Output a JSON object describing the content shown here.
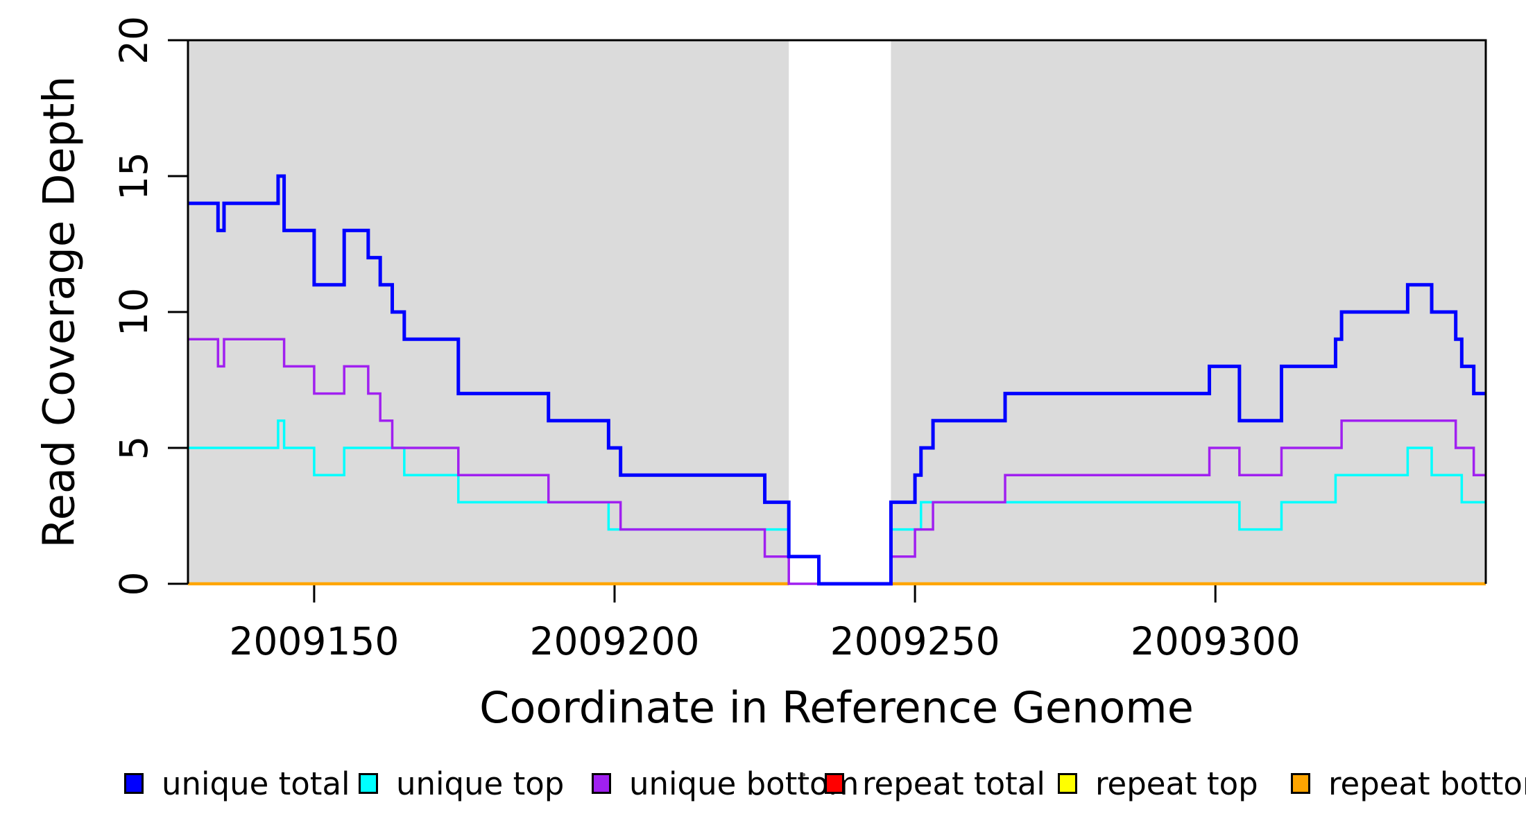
{
  "labels": {
    "x_axis": "Coordinate in Reference Genome",
    "y_axis": "Read Coverage Depth"
  },
  "chart_data": {
    "type": "line",
    "subtype": "step",
    "xlabel": "Coordinate in Reference Genome",
    "ylabel": "Read Coverage Depth",
    "xlim": [
      2009129,
      2009345
    ],
    "ylim": [
      0,
      20
    ],
    "x_ticks": [
      "2009150",
      "2009200",
      "2009250",
      "2009300"
    ],
    "x_tick_values": [
      2009150,
      2009200,
      2009250,
      2009300
    ],
    "y_ticks": [
      "0",
      "5",
      "10",
      "15",
      "20"
    ],
    "y_tick_values": [
      0,
      5,
      10,
      15,
      20
    ],
    "grid": false,
    "legend_position": "bottom",
    "background_color": "#ffffff",
    "shaded_region_color": "#dbdbdb",
    "shaded_regions": [
      {
        "x0": 2009129,
        "x1": 2009229
      },
      {
        "x0": 2009246,
        "x1": 2009345
      }
    ],
    "gap_region": {
      "x0": 2009229,
      "x1": 2009246
    },
    "series": [
      {
        "name": "repeat total",
        "color": "#FF0000",
        "line_width": 3.5,
        "z": 1,
        "segments": [
          {
            "steps": [
              [
                2009129,
                0
              ]
            ],
            "end": 2009229
          },
          {
            "steps": [
              [
                2009246,
                0
              ]
            ],
            "end": 2009345
          }
        ]
      },
      {
        "name": "repeat top",
        "color": "#FFFF00",
        "line_width": 3.5,
        "z": 2,
        "segments": [
          {
            "steps": [
              [
                2009129,
                0
              ]
            ],
            "end": 2009229
          },
          {
            "steps": [
              [
                2009246,
                0
              ]
            ],
            "end": 2009345
          }
        ]
      },
      {
        "name": "repeat bottom",
        "color": "#FFA500",
        "line_width": 4.5,
        "z": 3,
        "segments": [
          {
            "steps": [
              [
                2009129,
                0
              ]
            ],
            "end": 2009229
          },
          {
            "steps": [
              [
                2009246,
                0
              ]
            ],
            "end": 2009345
          }
        ]
      },
      {
        "name": "unique top",
        "color": "#00FFFF",
        "line_width": 3.5,
        "z": 4,
        "segments": [
          {
            "steps": [
              [
                2009129,
                5
              ],
              [
                2009144,
                6
              ],
              [
                2009145,
                5
              ],
              [
                2009150,
                4
              ],
              [
                2009155,
                5
              ],
              [
                2009165,
                4
              ],
              [
                2009174,
                3
              ],
              [
                2009199,
                2
              ],
              [
                2009229,
                1
              ],
              [
                2009234,
                0
              ],
              [
                2009246,
                2
              ],
              [
                2009251,
                3
              ],
              [
                2009304,
                2
              ],
              [
                2009311,
                3
              ],
              [
                2009320,
                4
              ],
              [
                2009332,
                5
              ],
              [
                2009336,
                4
              ],
              [
                2009341,
                3
              ]
            ],
            "end": 2009345
          }
        ]
      },
      {
        "name": "unique bottom",
        "color": "#A020F0",
        "line_width": 3.5,
        "z": 5,
        "segments": [
          {
            "steps": [
              [
                2009129,
                9
              ],
              [
                2009134,
                8
              ],
              [
                2009135,
                9
              ],
              [
                2009145,
                8
              ],
              [
                2009150,
                7
              ],
              [
                2009155,
                8
              ],
              [
                2009159,
                7
              ],
              [
                2009161,
                6
              ],
              [
                2009163,
                5
              ],
              [
                2009174,
                4
              ],
              [
                2009189,
                3
              ],
              [
                2009201,
                2
              ],
              [
                2009225,
                1
              ],
              [
                2009229,
                0
              ],
              [
                2009246,
                1
              ],
              [
                2009250,
                2
              ],
              [
                2009253,
                3
              ],
              [
                2009265,
                4
              ],
              [
                2009299,
                5
              ],
              [
                2009304,
                4
              ],
              [
                2009311,
                5
              ],
              [
                2009321,
                6
              ],
              [
                2009340,
                5
              ],
              [
                2009343,
                4
              ]
            ],
            "end": 2009345
          }
        ]
      },
      {
        "name": "unique total",
        "color": "#0000FF",
        "line_width": 5,
        "z": 6,
        "segments": [
          {
            "steps": [
              [
                2009129,
                14
              ],
              [
                2009134,
                13
              ],
              [
                2009135,
                14
              ],
              [
                2009144,
                15
              ],
              [
                2009145,
                13
              ],
              [
                2009150,
                11
              ],
              [
                2009155,
                13
              ],
              [
                2009159,
                12
              ],
              [
                2009161,
                11
              ],
              [
                2009163,
                10
              ],
              [
                2009165,
                9
              ],
              [
                2009174,
                7
              ],
              [
                2009189,
                6
              ],
              [
                2009199,
                5
              ],
              [
                2009201,
                4
              ],
              [
                2009225,
                3
              ],
              [
                2009229,
                1
              ],
              [
                2009234,
                0
              ],
              [
                2009246,
                3
              ],
              [
                2009250,
                4
              ],
              [
                2009251,
                5
              ],
              [
                2009253,
                6
              ],
              [
                2009265,
                7
              ],
              [
                2009299,
                8
              ],
              [
                2009304,
                6
              ],
              [
                2009311,
                8
              ],
              [
                2009320,
                9
              ],
              [
                2009321,
                10
              ],
              [
                2009332,
                11
              ],
              [
                2009336,
                10
              ],
              [
                2009340,
                9
              ],
              [
                2009341,
                8
              ],
              [
                2009343,
                7
              ]
            ],
            "end": 2009345
          }
        ]
      }
    ]
  },
  "legend": {
    "items": [
      {
        "label": "unique total",
        "color": "#0000FF"
      },
      {
        "label": "unique top",
        "color": "#00FFFF"
      },
      {
        "label": "unique bottom",
        "color": "#A020F0"
      },
      {
        "label": "repeat total",
        "color": "#FF0000"
      },
      {
        "label": "repeat top",
        "color": "#FFFF00"
      },
      {
        "label": "repeat bottom",
        "color": "#FFA500"
      }
    ]
  }
}
